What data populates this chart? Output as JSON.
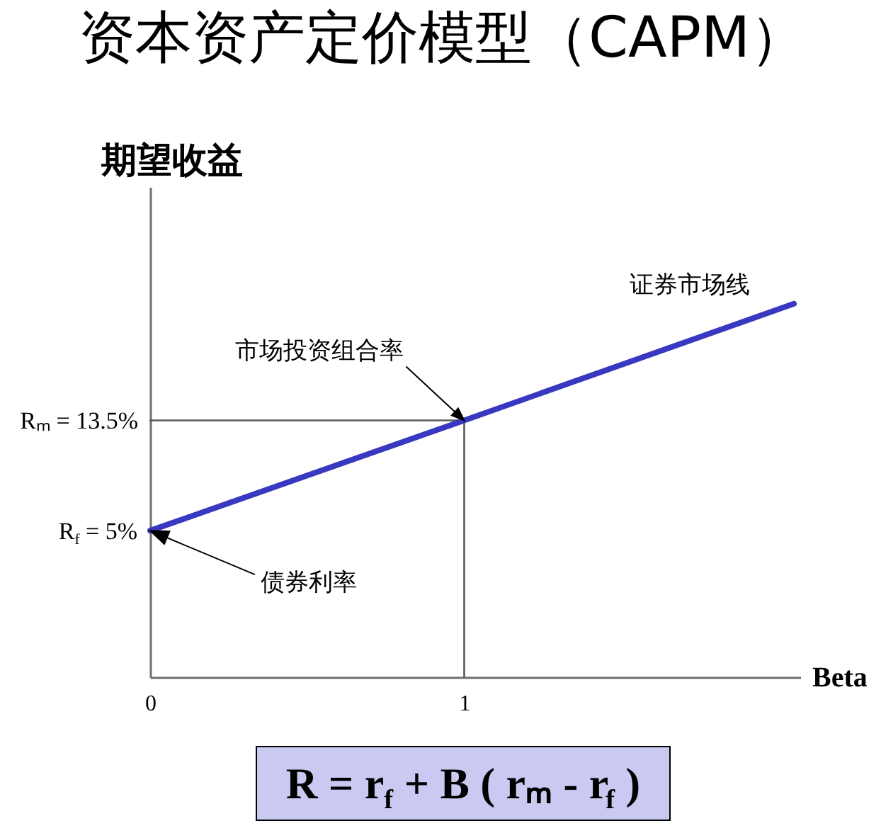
{
  "chart_data": {
    "type": "line",
    "title": "资本资产定价模型（CAPM）",
    "xlabel": "Beta",
    "ylabel": "期望收益",
    "xlim": [
      0,
      2.07
    ],
    "ylim": [
      -6.3,
      31.5
    ],
    "xticks": [
      0,
      1
    ],
    "yticks": [
      {
        "value": 5,
        "label": "R$_{f}$ = 5%"
      },
      {
        "value": 13.5,
        "label": "Rₘ = 13.5%"
      }
    ],
    "series": [
      {
        "type": "line",
        "color": "#5a5a5a",
        "x": [
          0,
          1,
          1
        ],
        "values": [
          13.5,
          13.5,
          -6.3
        ]
      },
      {
        "name": "证券市场线",
        "type": "line",
        "color": "#3838c0",
        "x": [
          0,
          1,
          2.05
        ],
        "values": [
          5,
          13.5,
          22.5
        ]
      }
    ],
    "annotations": [
      {
        "text": "市场投资组合率",
        "x": 1,
        "y": 13.5
      },
      {
        "text": "债券利率",
        "x": 0,
        "y": 5
      },
      "R = r$_{f}$ + B ( rₘ - r$_{f}$ )"
    ]
  }
}
